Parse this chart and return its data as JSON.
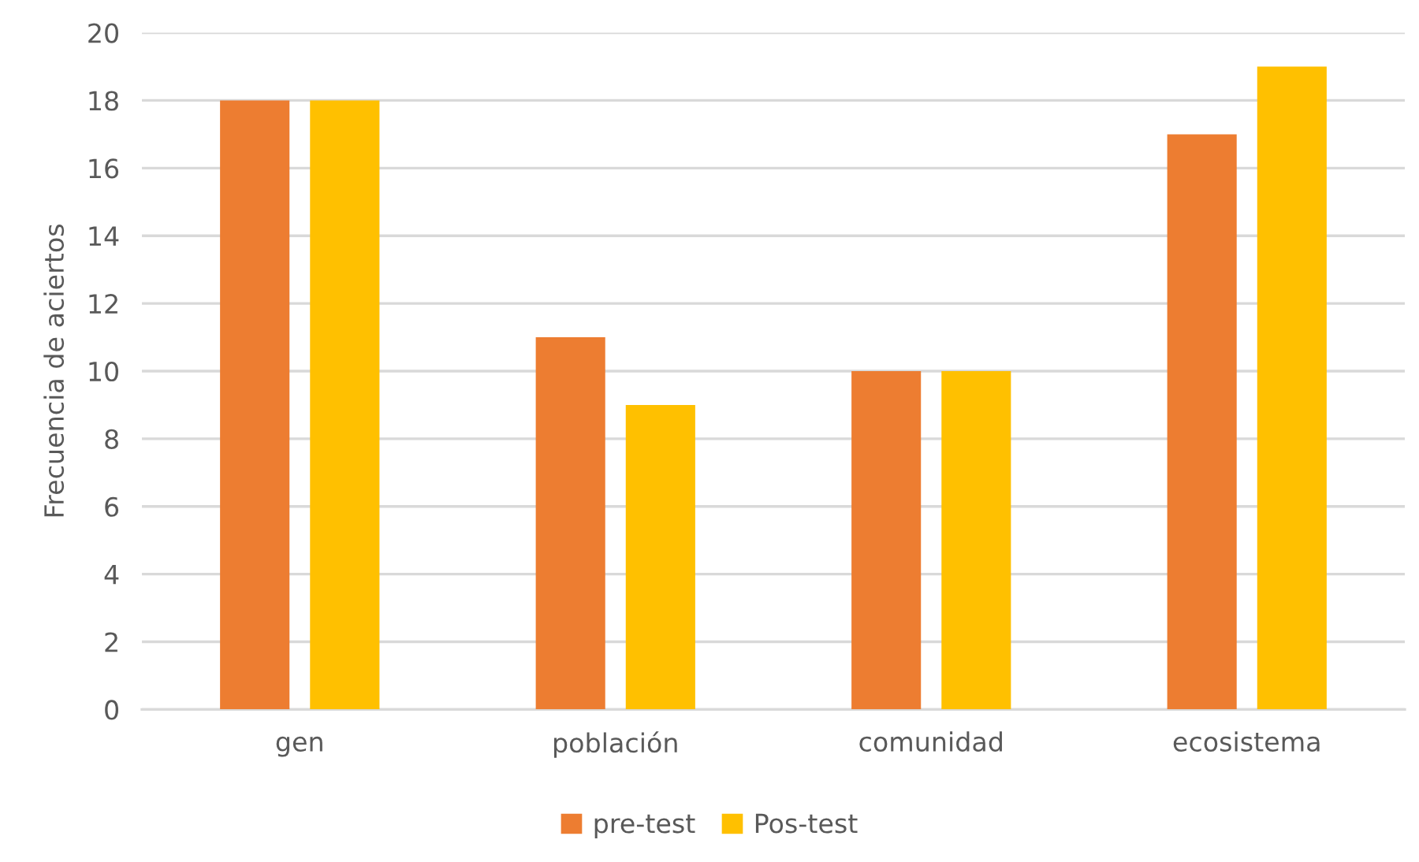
{
  "chart_data": {
    "type": "bar",
    "ylabel": "Frecuencia de aciertos",
    "categories": [
      "gen",
      "población",
      "comunidad",
      "ecosistema"
    ],
    "series": [
      {
        "name": "pre-test",
        "color": "#ed7d31",
        "values": [
          18,
          11,
          10,
          17
        ]
      },
      {
        "name": "Pos-test",
        "color": "#ffc000",
        "values": [
          18,
          9,
          10,
          19
        ]
      }
    ],
    "ylim": [
      0,
      20
    ],
    "yticks": [
      0,
      2,
      4,
      6,
      8,
      10,
      12,
      14,
      16,
      18,
      20
    ],
    "grid": "y",
    "legend": "bottom"
  }
}
